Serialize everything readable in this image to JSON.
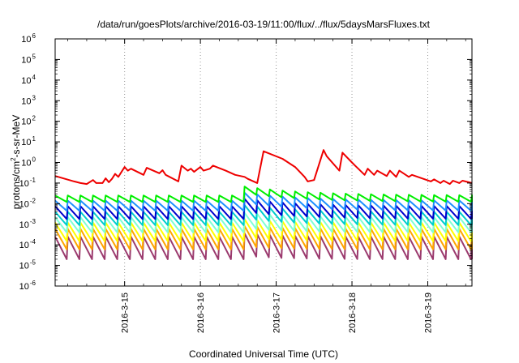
{
  "chart_data": {
    "type": "line",
    "title": "/data/run/goesPlots/archive/2016-03-19/11:00/flux/../flux/5daysMarsFluxes.txt",
    "xlabel": "Coordinated Universal Time (UTC)",
    "ylabel": "protons/cm²-s-sr-MeV",
    "ylabel_parts": [
      "protons/cm",
      "2",
      "-s-sr-MeV"
    ],
    "yscale": "log",
    "ylim": [
      1e-06,
      1000000.0
    ],
    "y_ticks": [
      {
        "base": "10",
        "exp": "-6"
      },
      {
        "base": "10",
        "exp": "-5"
      },
      {
        "base": "10",
        "exp": "-4"
      },
      {
        "base": "10",
        "exp": "-3"
      },
      {
        "base": "10",
        "exp": "-2"
      },
      {
        "base": "10",
        "exp": "-1"
      },
      {
        "base": "10",
        "exp": "0"
      },
      {
        "base": "10",
        "exp": "1"
      },
      {
        "base": "10",
        "exp": "2"
      },
      {
        "base": "10",
        "exp": "3"
      },
      {
        "base": "10",
        "exp": "4"
      },
      {
        "base": "10",
        "exp": "5"
      },
      {
        "base": "10",
        "exp": "6"
      }
    ],
    "xlim": [
      "2016-03-14T02:00",
      "2016-03-19T14:00"
    ],
    "x_ticks": [
      "2016-3-15",
      "2016-3-16",
      "2016-3-17",
      "2016-3-18",
      "2016-3-19"
    ],
    "x_tick_dates": [
      "2016-03-15T00:00",
      "2016-03-16T00:00",
      "2016-03-17T00:00",
      "2016-03-18T00:00",
      "2016-03-19T00:00"
    ],
    "grid": true,
    "series": [
      {
        "color": "#ee0000",
        "x": [
          "2016-03-14T02:00",
          "2016-03-14T08:00",
          "2016-03-14T10:00",
          "2016-03-14T12:00",
          "2016-03-14T14:00",
          "2016-03-14T15:00",
          "2016-03-14T17:00",
          "2016-03-14T18:00",
          "2016-03-14T19:00",
          "2016-03-14T20:00",
          "2016-03-14T21:00",
          "2016-03-14T22:00",
          "2016-03-15T00:00",
          "2016-03-15T01:00",
          "2016-03-15T02:00",
          "2016-03-15T06:00",
          "2016-03-15T07:00",
          "2016-03-15T11:00",
          "2016-03-15T12:00",
          "2016-03-15T13:00",
          "2016-03-15T17:00",
          "2016-03-15T18:00",
          "2016-03-15T20:00",
          "2016-03-15T21:00",
          "2016-03-15T22:00",
          "2016-03-16T00:00",
          "2016-03-16T01:00",
          "2016-03-16T03:00",
          "2016-03-16T04:00",
          "2016-03-16T08:00",
          "2016-03-16T11:00",
          "2016-03-16T14:00",
          "2016-03-16T15:00",
          "2016-03-16T18:00",
          "2016-03-16T20:00",
          "2016-03-17T02:00",
          "2016-03-17T06:00",
          "2016-03-17T09:00",
          "2016-03-17T10:00",
          "2016-03-17T12:00",
          "2016-03-17T15:00",
          "2016-03-17T16:00",
          "2016-03-17T20:00",
          "2016-03-17T21:00",
          "2016-03-18T00:00",
          "2016-03-18T01:00",
          "2016-03-18T02:00",
          "2016-03-18T04:00",
          "2016-03-18T05:00",
          "2016-03-18T07:00",
          "2016-03-18T08:00",
          "2016-03-18T11:00",
          "2016-03-18T12:00",
          "2016-03-18T14:00",
          "2016-03-18T15:00",
          "2016-03-18T18:00",
          "2016-03-18T19:00",
          "2016-03-19T01:00",
          "2016-03-19T02:00",
          "2016-03-19T04:00",
          "2016-03-19T05:00",
          "2016-03-19T07:00",
          "2016-03-19T08:00",
          "2016-03-19T10:00",
          "2016-03-19T11:00",
          "2016-03-19T14:00"
        ],
        "y": [
          0.22,
          0.12,
          0.1,
          0.09,
          0.14,
          0.1,
          0.1,
          0.17,
          0.11,
          0.16,
          0.28,
          0.2,
          0.6,
          0.4,
          0.5,
          0.25,
          0.55,
          0.3,
          0.42,
          0.25,
          0.12,
          0.7,
          0.4,
          0.5,
          0.35,
          0.6,
          0.4,
          0.5,
          0.7,
          0.4,
          0.25,
          0.2,
          0.16,
          0.1,
          3.5,
          1.5,
          0.6,
          0.2,
          0.12,
          0.14,
          4.0,
          2.0,
          0.4,
          3.0,
          1.0,
          0.7,
          0.5,
          0.25,
          0.5,
          0.25,
          0.4,
          0.22,
          0.4,
          0.2,
          0.4,
          0.2,
          0.25,
          0.12,
          0.15,
          0.1,
          0.13,
          0.09,
          0.13,
          0.1,
          0.13,
          0.1
        ],
        "sawtooth": false
      },
      {
        "color": "#00ee00",
        "sawtooth": true,
        "period_hours": 4,
        "base_hi": 0.025,
        "base_lo": 0.012,
        "event_start": "2016-03-16T11:00",
        "event_peak": 0.08,
        "event_decay_hours": 20
      },
      {
        "color": "#1e90ff",
        "sawtooth": true,
        "period_hours": 4,
        "base_hi": 0.014,
        "base_lo": 0.0045,
        "event_start": "2016-03-16T11:00",
        "event_peak": 0.04,
        "event_decay_hours": 18
      },
      {
        "color": "#0000cd",
        "sawtooth": true,
        "period_hours": 4,
        "base_hi": 0.0075,
        "base_lo": 0.0018,
        "event_start": "2016-03-16T11:00",
        "event_peak": 0.02,
        "event_decay_hours": 18
      },
      {
        "color": "#00cdcd",
        "sawtooth": true,
        "period_hours": 4,
        "base_hi": 0.004,
        "base_lo": 0.0009,
        "event_start": "2016-03-16T11:00",
        "event_peak": 0.01,
        "event_decay_hours": 16
      },
      {
        "color": "#7fffd4",
        "sawtooth": true,
        "period_hours": 4,
        "base_hi": 0.0022,
        "base_lo": 0.0004,
        "event_start": "2016-03-16T11:00",
        "event_peak": 0.004,
        "event_decay_hours": 14
      },
      {
        "color": "#ffff00",
        "sawtooth": true,
        "period_hours": 4,
        "base_hi": 0.0012,
        "base_lo": 0.00015,
        "event_start": "2016-03-16T11:00",
        "event_peak": 0.002,
        "event_decay_hours": 12
      },
      {
        "color": "#ffa500",
        "sawtooth": true,
        "period_hours": 4,
        "base_hi": 0.0006,
        "base_lo": 6e-05,
        "event_start": "2016-03-16T11:00",
        "event_peak": 0.0009,
        "event_decay_hours": 12
      },
      {
        "color": "#9b3a6e",
        "sawtooth": true,
        "period_hours": 4,
        "base_hi": 0.00025,
        "base_lo": 2e-05,
        "event_start": "2016-03-16T11:00",
        "event_peak": 0.0004,
        "event_decay_hours": 12
      }
    ]
  }
}
